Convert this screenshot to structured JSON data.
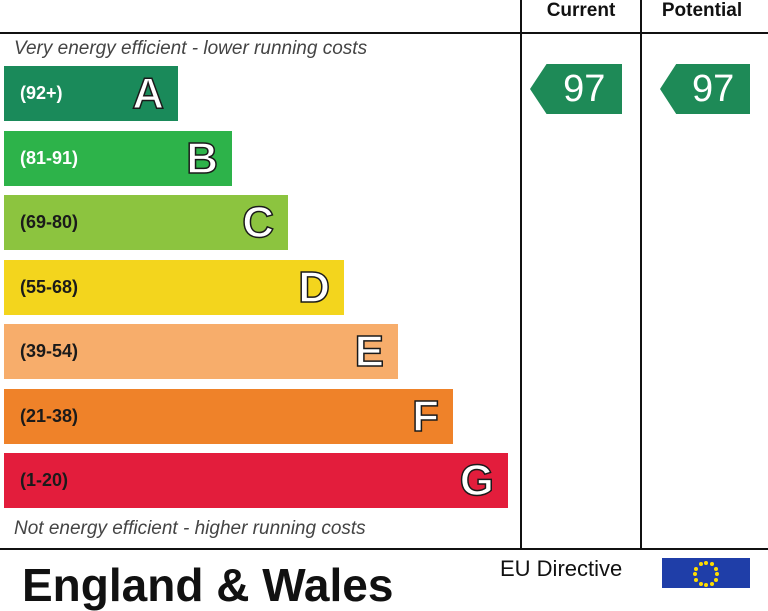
{
  "columns": {
    "current": "Current",
    "potential": "Potential"
  },
  "top_note": "Very energy efficient - lower running costs",
  "bottom_note": "Not energy efficient - higher running costs",
  "footer": {
    "country": "England & Wales",
    "directive": "EU Directive"
  },
  "chart_data": {
    "type": "bar",
    "categories": [
      "A",
      "B",
      "C",
      "D",
      "E",
      "F",
      "G"
    ],
    "ranges": [
      "(92+)",
      "(81-91)",
      "(69-80)",
      "(55-68)",
      "(39-54)",
      "(21-38)",
      "(1-20)"
    ],
    "colors": [
      "#1a8a5a",
      "#2db34a",
      "#8cc43f",
      "#f3d51d",
      "#f7ad6b",
      "#ef8229",
      "#e31d3c"
    ],
    "range_text_colors": [
      "#ffffff",
      "#ffffff",
      "#1a1a1a",
      "#1a1a1a",
      "#1a1a1a",
      "#1a1a1a",
      "#1a1a1a"
    ],
    "current": {
      "value": "97",
      "band": "A"
    },
    "potential": {
      "value": "97",
      "band": "A"
    },
    "arrow_color": "#1e8a57"
  }
}
